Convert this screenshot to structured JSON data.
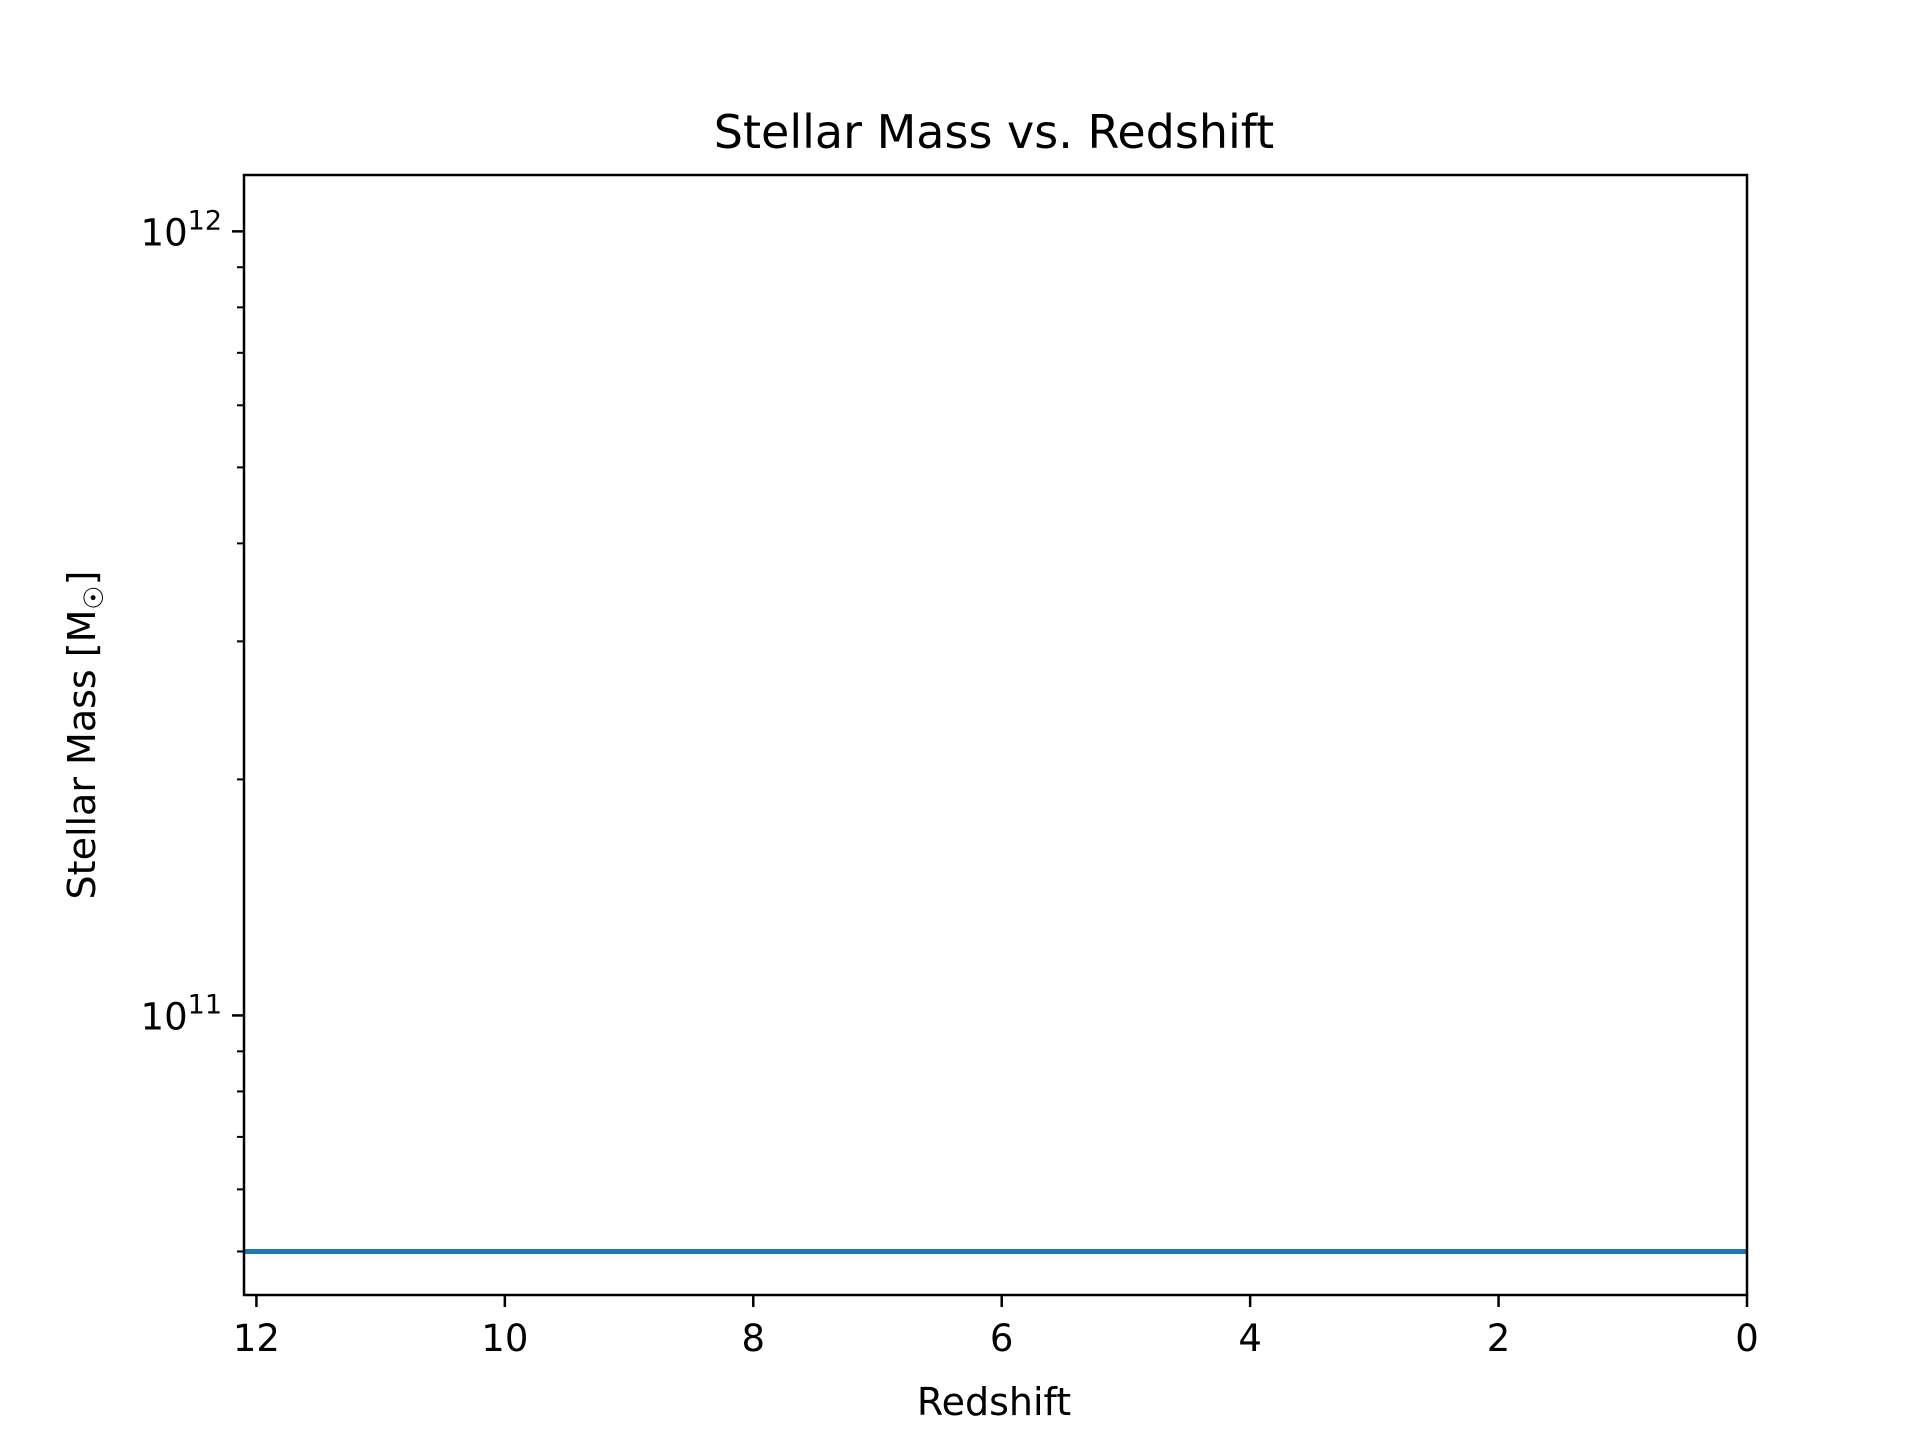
{
  "chart_data": {
    "type": "line",
    "title": "Stellar Mass vs. Redshift",
    "xlabel": "Redshift",
    "ylabel": "Stellar Mass [M☉]",
    "ylabel_main": "Stellar Mass [M",
    "ylabel_sub": "☉",
    "ylabel_close": "]",
    "x_inverted": true,
    "xlim": [
      12.1,
      0
    ],
    "ylim": [
      44000000000,
      1180000000000
    ],
    "y_scale": "log",
    "grid": false,
    "x_ticks": [
      {
        "value": 12,
        "label": "12"
      },
      {
        "value": 10,
        "label": "10"
      },
      {
        "value": 8,
        "label": "8"
      },
      {
        "value": 6,
        "label": "6"
      },
      {
        "value": 4,
        "label": "4"
      },
      {
        "value": 2,
        "label": "2"
      },
      {
        "value": 0,
        "label": "0"
      }
    ],
    "y_ticks": [
      {
        "value": 1000000000000,
        "base": "10",
        "exponent": "12"
      },
      {
        "value": 100000000000,
        "base": "10",
        "exponent": "11"
      }
    ],
    "y_minor_ticks": [
      50000000000,
      60000000000,
      70000000000,
      80000000000,
      90000000000,
      200000000000,
      300000000000,
      400000000000,
      500000000000,
      600000000000,
      700000000000,
      800000000000,
      900000000000
    ],
    "series": [
      {
        "color": "#1f77b4",
        "x": [
          12.1,
          0
        ],
        "y": [
          50000000000,
          50000000000
        ]
      }
    ]
  }
}
